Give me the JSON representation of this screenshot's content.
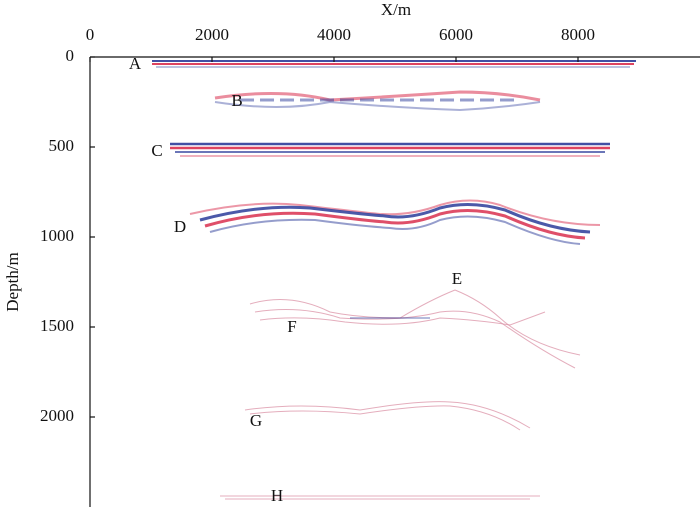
{
  "chart_data": {
    "type": "image",
    "x_label": "X/m",
    "y_label": "Depth/m",
    "xlim": [
      0,
      10000
    ],
    "xticks": [
      0,
      2000,
      4000,
      6000,
      8000
    ],
    "ylim": [
      0,
      2500
    ],
    "yticks": [
      0,
      500,
      1000,
      1500,
      2000
    ],
    "annotations": [
      "A",
      "B",
      "C",
      "D",
      "E",
      "F",
      "G",
      "H"
    ]
  }
}
